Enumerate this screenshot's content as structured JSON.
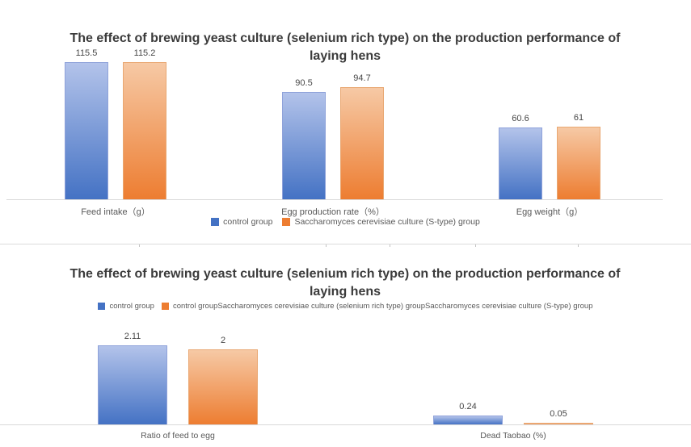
{
  "page": {
    "background": "#ffffff",
    "axis_line_color": "#d9d9d9",
    "divider_color": "#dcdcdc"
  },
  "chart_data": [
    {
      "type": "bar",
      "title": "The effect of brewing yeast culture (selenium rich type) on the production performance of laying hens",
      "categories": [
        "Feed intake（g）",
        "Egg production rate（%）",
        "Egg weight（g）"
      ],
      "series": [
        {
          "name": "control group",
          "color": "#4472c4",
          "color_light": "#b3c3ea",
          "border": "#8fa2da",
          "values": [
            115.5,
            90.5,
            60.6
          ]
        },
        {
          "name": "Saccharomyces cerevisiae culture (S-type) group",
          "color": "#ed7d31",
          "color_light": "#f6c9a5",
          "border": "#e9a873",
          "values": [
            115.2,
            94.7,
            61
          ]
        }
      ],
      "legend": [
        "control group",
        "Saccharomyces cerevisiae culture (S-type) group"
      ],
      "legend_position": "bottom",
      "data_labels": true,
      "grid": false,
      "y_axis_visible": false,
      "ylim": [
        0,
        120
      ]
    },
    {
      "type": "bar",
      "title": "The effect of brewing yeast culture (selenium rich type) on the production performance of laying hens",
      "categories": [
        "Ratio of feed to egg",
        "Dead Taobao (%)"
      ],
      "series": [
        {
          "name": "control group",
          "color": "#4472c4",
          "color_light": "#b3c3ea",
          "border": "#8fa2da",
          "values": [
            2.11,
            0.24
          ]
        },
        {
          "name": "control groupSaccharomyces cerevisiae culture (selenium rich type) groupSaccharomyces cerevisiae culture (S-type) group",
          "color": "#ed7d31",
          "color_light": "#f6c9a5",
          "border": "#e9a873",
          "values": [
            2,
            0.05
          ]
        }
      ],
      "legend": [
        "control group",
        "control groupSaccharomyces cerevisiae culture (selenium rich type) groupSaccharomyces cerevisiae culture (S-type) group"
      ],
      "legend_position": "top",
      "data_labels": true,
      "grid": false,
      "y_axis_visible": false,
      "ylim": [
        0,
        2.2
      ]
    }
  ]
}
